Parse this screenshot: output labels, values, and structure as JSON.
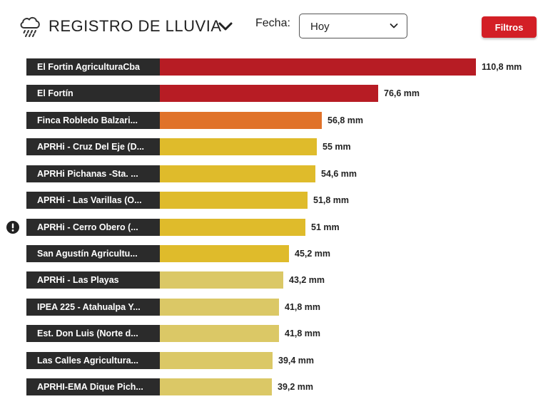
{
  "header": {
    "title": "REGISTRO DE LLUVIA",
    "title_icon": "rain-cloud-icon",
    "date_label": "Fecha:",
    "date_value": "Hoy",
    "filter_label": "Filtros"
  },
  "colors": {
    "label_background": "#2b2b2b",
    "filter_button": "#d31f26",
    "band_red": "#b71c24",
    "band_orange": "#e0722a",
    "band_yellow": "#dfbb2b",
    "band_light_yellow": "#dbc866"
  },
  "chart_data": {
    "type": "bar",
    "orientation": "horizontal",
    "unit": "mm",
    "categories": [
      "El Fortin AgriculturaCba",
      "El Fortín",
      "Finca Robledo Balzari...",
      "APRHi - Cruz Del Eje (D...",
      "APRHi Pichanas -Sta. ...",
      "APRHi - Las Varillas (O...",
      "APRHi - Cerro Obero (...",
      "San Agustín Agricultu...",
      "APRHi - Las Playas",
      "IPEA 225 - Atahualpa Y...",
      "Est. Don Luis (Norte d...",
      "Las Calles Agricultura...",
      "APRHI-EMA Dique Pich..."
    ],
    "values": [
      110.8,
      76.6,
      56.8,
      55,
      54.6,
      51.8,
      51,
      45.2,
      43.2,
      41.8,
      41.8,
      39.4,
      39.2
    ],
    "value_labels": [
      "110,8 mm",
      "76,6 mm",
      "56,8 mm",
      "55 mm",
      "54,6 mm",
      "51,8 mm",
      "51 mm",
      "45,2 mm",
      "43,2 mm",
      "41,8 mm",
      "41,8 mm",
      "39,4 mm",
      "39,2 mm"
    ],
    "bar_colors": [
      "#b71c24",
      "#b71c24",
      "#e0722a",
      "#dfbb2b",
      "#dfbb2b",
      "#dfbb2b",
      "#dfbb2b",
      "#dfbb2b",
      "#dbc866",
      "#dbc866",
      "#dbc866",
      "#dbc866",
      "#dbc866"
    ],
    "alerts": [
      false,
      false,
      false,
      false,
      false,
      false,
      true,
      false,
      false,
      false,
      false,
      false,
      false
    ],
    "alert_icon": "exclamation-circle-icon",
    "xlim": [
      0,
      110.8
    ]
  }
}
